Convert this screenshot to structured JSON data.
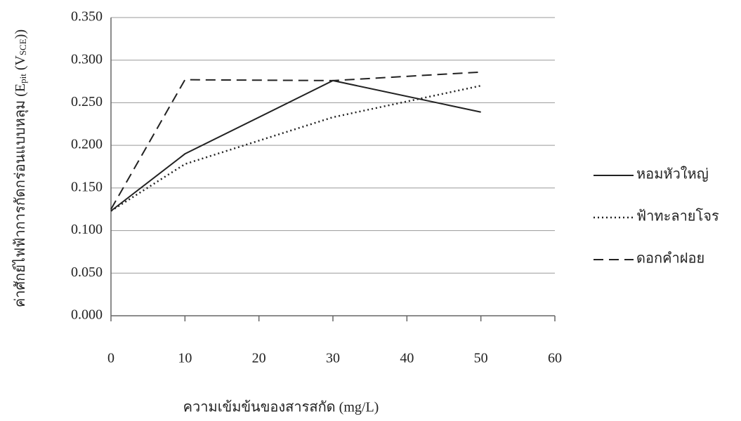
{
  "chart_data": {
    "type": "line",
    "x_label": "ความเข้มข้นของสารสกัด (mg/L)",
    "y_label": [
      "ค่าศักย์ไฟฟ้าการกัดกร่อนแบบหลุม (E",
      "pit",
      " (V",
      "SCE",
      "))"
    ],
    "x": [
      0,
      10,
      30,
      50
    ],
    "xlim": [
      0,
      60
    ],
    "xticks": [
      0,
      10,
      20,
      30,
      40,
      50,
      60
    ],
    "ylim": [
      0,
      0.35
    ],
    "yticks": [
      {
        "value": 0,
        "label": "0.000"
      },
      {
        "value": 0.05,
        "label": "0.050"
      },
      {
        "value": 0.1,
        "label": "0.100"
      },
      {
        "value": 0.15,
        "label": "0.150"
      },
      {
        "value": 0.2,
        "label": "0.200"
      },
      {
        "value": 0.25,
        "label": "0.250"
      },
      {
        "value": 0.3,
        "label": "0.300"
      },
      {
        "value": 0.35,
        "label": "0.350"
      }
    ],
    "grid": true,
    "legend": "right",
    "series": [
      {
        "name": "หอมหัวใหญ่",
        "color": "#222222",
        "dash": "solid",
        "values": [
          0.123,
          0.19,
          0.276,
          0.239
        ]
      },
      {
        "name": "ฟ้าทะลายโจร",
        "color": "#222222",
        "dash": "dotted",
        "values": [
          0.123,
          0.178,
          0.233,
          0.27
        ]
      },
      {
        "name": "ดอกคำฝอย",
        "color": "#222222",
        "dash": "dashed",
        "values": [
          0.125,
          0.277,
          0.276,
          0.286
        ]
      }
    ]
  }
}
